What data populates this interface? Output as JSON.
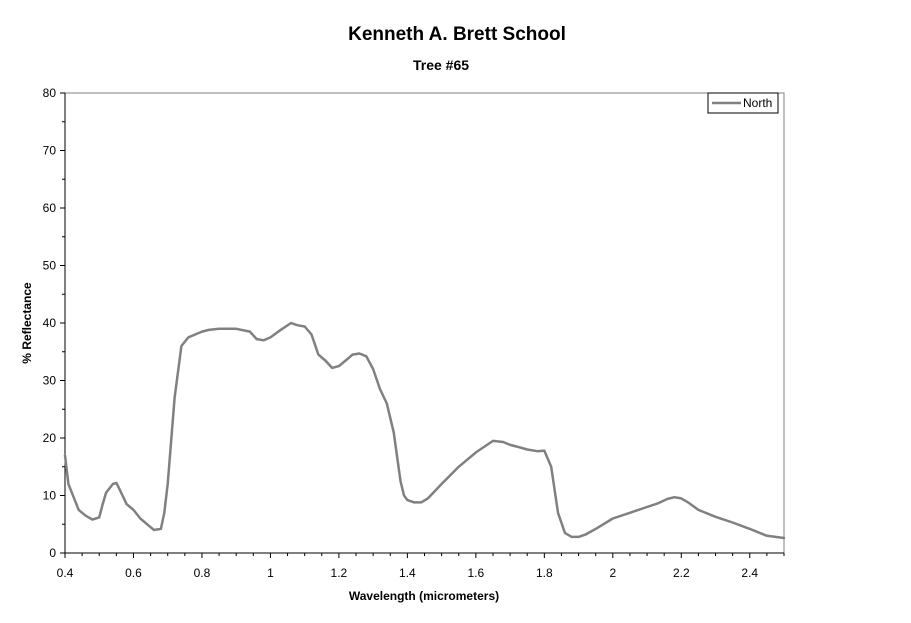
{
  "chart_data": {
    "type": "line",
    "title": "Kenneth A. Brett School",
    "subtitle": "Tree #65",
    "xlabel": "Wavelength (micrometers)",
    "ylabel": "% Reflectance",
    "xlim": [
      0.4,
      2.5
    ],
    "ylim": [
      0,
      80
    ],
    "x_ticks": [
      0.4,
      0.6,
      0.8,
      1,
      1.2,
      1.4,
      1.6,
      1.8,
      2,
      2.2,
      2.4
    ],
    "x_tick_labels": [
      "0.4",
      "0.6",
      "0.8",
      "1",
      "1.2",
      "1.4",
      "1.6",
      "1.8",
      "2",
      "2.2",
      "2.4"
    ],
    "y_ticks": [
      0,
      10,
      20,
      30,
      40,
      50,
      60,
      70,
      80
    ],
    "y_tick_labels": [
      "0",
      "10",
      "20",
      "30",
      "40",
      "50",
      "60",
      "70",
      "80"
    ],
    "grid": false,
    "legend_position": "top-right",
    "series_color": "#808080",
    "series": [
      {
        "name": "North",
        "x": [
          0.4,
          0.41,
          0.42,
          0.44,
          0.46,
          0.48,
          0.5,
          0.51,
          0.52,
          0.54,
          0.55,
          0.56,
          0.58,
          0.6,
          0.62,
          0.64,
          0.66,
          0.68,
          0.69,
          0.7,
          0.72,
          0.74,
          0.76,
          0.78,
          0.8,
          0.82,
          0.85,
          0.9,
          0.94,
          0.96,
          0.98,
          1.0,
          1.03,
          1.06,
          1.08,
          1.1,
          1.12,
          1.14,
          1.16,
          1.18,
          1.2,
          1.22,
          1.24,
          1.26,
          1.28,
          1.3,
          1.32,
          1.34,
          1.36,
          1.38,
          1.39,
          1.4,
          1.42,
          1.44,
          1.46,
          1.5,
          1.55,
          1.6,
          1.65,
          1.68,
          1.7,
          1.72,
          1.75,
          1.78,
          1.8,
          1.82,
          1.84,
          1.86,
          1.88,
          1.9,
          1.92,
          1.95,
          2.0,
          2.05,
          2.1,
          2.13,
          2.16,
          2.18,
          2.2,
          2.22,
          2.25,
          2.3,
          2.35,
          2.4,
          2.45,
          2.5
        ],
        "y": [
          17,
          12,
          10.5,
          7.5,
          6.5,
          5.8,
          6.2,
          8.5,
          10.5,
          12,
          12.2,
          11,
          8.5,
          7.5,
          6,
          5,
          4,
          4.2,
          7,
          12,
          27,
          36,
          37.5,
          38,
          38.5,
          38.8,
          39,
          39,
          38.5,
          37.2,
          37,
          37.5,
          38.8,
          40,
          39.6,
          39.4,
          38,
          34.5,
          33.5,
          32.2,
          32.5,
          33.5,
          34.5,
          34.7,
          34.2,
          32,
          28.5,
          26,
          21,
          12.5,
          10,
          9.2,
          8.8,
          8.8,
          9.5,
          12,
          15,
          17.5,
          19.5,
          19.3,
          18.8,
          18.5,
          18,
          17.7,
          17.8,
          15,
          7,
          3.5,
          2.8,
          2.8,
          3.2,
          4.2,
          6,
          7,
          8,
          8.6,
          9.4,
          9.7,
          9.5,
          8.8,
          7.5,
          6.3,
          5.3,
          4.2,
          3,
          2.6
        ]
      }
    ]
  }
}
